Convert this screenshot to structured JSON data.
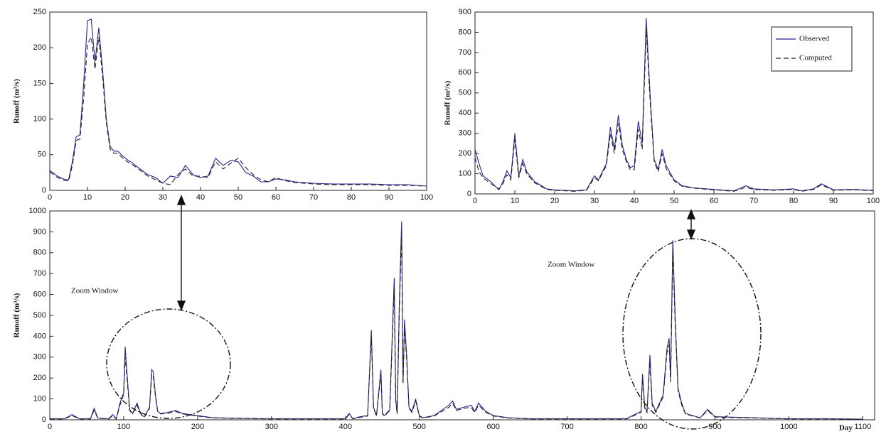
{
  "chart_data": [
    {
      "type": "line",
      "ylabel": "Runoff (m³/s)",
      "x": [
        0,
        2,
        4,
        5,
        6,
        7,
        8,
        9,
        10,
        11,
        12,
        13,
        14,
        15,
        16,
        17,
        18,
        20,
        22,
        24,
        26,
        28,
        30,
        32,
        34,
        36,
        38,
        40,
        42,
        44,
        46,
        48,
        50,
        52,
        54,
        56,
        58,
        60,
        62,
        65,
        70,
        75,
        80,
        85,
        90,
        95,
        100
      ],
      "series": [
        {
          "name": "Observed",
          "color": "#24248f",
          "linestyle": "solid",
          "values": [
            28,
            20,
            15,
            15,
            40,
            75,
            78,
            150,
            238,
            240,
            180,
            228,
            170,
            100,
            62,
            55,
            55,
            45,
            38,
            30,
            22,
            18,
            10,
            20,
            18,
            35,
            22,
            18,
            20,
            45,
            35,
            42,
            40,
            25,
            20,
            12,
            12,
            16,
            15,
            12,
            10,
            9,
            9,
            9,
            8,
            8,
            6
          ]
        },
        {
          "name": "Computed",
          "color": "#222222",
          "linestyle": "dashed",
          "values": [
            26,
            18,
            14,
            13,
            35,
            70,
            72,
            130,
            205,
            215,
            170,
            215,
            160,
            95,
            58,
            52,
            52,
            42,
            36,
            28,
            20,
            15,
            10,
            8,
            22,
            30,
            20,
            20,
            18,
            40,
            30,
            38,
            45,
            32,
            22,
            15,
            12,
            18,
            14,
            11,
            9,
            8,
            8,
            8,
            7,
            7,
            6
          ]
        }
      ],
      "xlim": [
        0,
        100
      ],
      "xticks": [
        0,
        10,
        20,
        30,
        40,
        50,
        60,
        70,
        80,
        90,
        100
      ],
      "ylim": [
        0,
        250
      ],
      "yticks": [
        0,
        50,
        100,
        150,
        200,
        250
      ]
    },
    {
      "type": "line",
      "ylabel": "Runoff (m³/s)",
      "legend": "upper right",
      "x": [
        0,
        1,
        2,
        4,
        6,
        7,
        8,
        9,
        10,
        11,
        12,
        13,
        15,
        18,
        20,
        25,
        28,
        30,
        31,
        33,
        34,
        35,
        36,
        37,
        38,
        39,
        40,
        41,
        42,
        43,
        44,
        45,
        46,
        47,
        48,
        50,
        52,
        55,
        60,
        65,
        68,
        70,
        75,
        80,
        82,
        85,
        87,
        90,
        95,
        100
      ],
      "series": [
        {
          "name": "Observed",
          "color": "#24248f",
          "linestyle": "solid",
          "values": [
            220,
            150,
            90,
            60,
            20,
            60,
            115,
            80,
            300,
            90,
            170,
            110,
            60,
            25,
            20,
            15,
            20,
            90,
            70,
            150,
            330,
            220,
            390,
            240,
            170,
            130,
            140,
            360,
            250,
            870,
            480,
            170,
            120,
            220,
            140,
            70,
            40,
            30,
            22,
            15,
            40,
            25,
            20,
            25,
            15,
            25,
            50,
            20,
            22,
            18
          ]
        },
        {
          "name": "Computed",
          "color": "#222222",
          "linestyle": "dashed",
          "values": [
            180,
            110,
            80,
            50,
            25,
            50,
            95,
            70,
            270,
            80,
            150,
            100,
            55,
            22,
            18,
            13,
            18,
            80,
            65,
            140,
            300,
            200,
            350,
            220,
            160,
            120,
            120,
            320,
            220,
            820,
            450,
            160,
            110,
            200,
            125,
            65,
            38,
            28,
            20,
            13,
            32,
            22,
            18,
            22,
            13,
            22,
            45,
            18,
            20,
            16
          ]
        }
      ],
      "xlim": [
        0,
        100
      ],
      "xticks": [
        0,
        10,
        20,
        30,
        40,
        50,
        60,
        70,
        80,
        90,
        100
      ],
      "ylim": [
        0,
        900
      ],
      "yticks": [
        0,
        100,
        200,
        300,
        400,
        500,
        600,
        700,
        800,
        900
      ]
    },
    {
      "type": "line",
      "ylabel": "Runoff (m³/s)",
      "xlabel": "Day",
      "annotations": [
        "Zoom Window",
        "Zoom Window"
      ],
      "x": [
        0,
        20,
        30,
        40,
        55,
        60,
        65,
        80,
        85,
        90,
        95,
        100,
        102,
        105,
        108,
        112,
        118,
        122,
        125,
        128,
        135,
        138,
        140,
        143,
        146,
        150,
        160,
        170,
        180,
        200,
        220,
        240,
        300,
        350,
        400,
        405,
        410,
        420,
        430,
        435,
        438,
        442,
        448,
        450,
        453,
        460,
        466,
        468,
        470,
        473,
        476,
        478,
        480,
        483,
        486,
        490,
        495,
        500,
        505,
        520,
        540,
        545,
        550,
        560,
        570,
        575,
        580,
        590,
        600,
        620,
        650,
        700,
        750,
        780,
        800,
        802,
        805,
        808,
        812,
        815,
        820,
        830,
        835,
        838,
        840,
        843,
        846,
        850,
        855,
        860,
        870,
        880,
        890,
        900,
        950,
        1000,
        1050,
        1100
      ],
      "series": [
        {
          "name": "Observed",
          "color": "#24248f",
          "linestyle": "solid",
          "values": [
            5,
            5,
            25,
            5,
            5,
            55,
            8,
            5,
            25,
            5,
            80,
            130,
            350,
            200,
            50,
            30,
            80,
            40,
            20,
            15,
            60,
            240,
            230,
            120,
            40,
            30,
            35,
            45,
            30,
            20,
            10,
            8,
            5,
            5,
            5,
            30,
            5,
            15,
            20,
            430,
            60,
            20,
            240,
            30,
            20,
            50,
            680,
            100,
            30,
            560,
            950,
            180,
            480,
            300,
            60,
            40,
            100,
            20,
            10,
            20,
            70,
            90,
            50,
            60,
            70,
            40,
            80,
            40,
            20,
            10,
            5,
            5,
            5,
            5,
            40,
            220,
            60,
            40,
            310,
            80,
            40,
            120,
            340,
            390,
            200,
            860,
            500,
            150,
            80,
            30,
            20,
            10,
            50,
            15,
            10,
            5,
            5,
            3
          ]
        },
        {
          "name": "Computed",
          "color": "#222222",
          "linestyle": "dashed",
          "values": [
            4,
            4,
            20,
            4,
            4,
            45,
            7,
            4,
            20,
            4,
            70,
            120,
            300,
            180,
            45,
            28,
            70,
            35,
            18,
            13,
            55,
            220,
            210,
            110,
            38,
            28,
            32,
            40,
            28,
            18,
            9,
            7,
            4,
            4,
            4,
            25,
            4,
            12,
            18,
            400,
            55,
            18,
            220,
            28,
            18,
            45,
            640,
            90,
            28,
            520,
            900,
            170,
            450,
            280,
            55,
            35,
            90,
            18,
            9,
            18,
            60,
            80,
            45,
            55,
            60,
            35,
            70,
            35,
            18,
            9,
            4,
            4,
            4,
            4,
            35,
            200,
            55,
            35,
            280,
            70,
            35,
            110,
            320,
            360,
            180,
            820,
            470,
            140,
            70,
            28,
            18,
            9,
            45,
            13,
            9,
            4,
            4,
            3
          ]
        }
      ],
      "xlim": [
        0,
        1116
      ],
      "xticks": [
        0,
        100,
        200,
        300,
        400,
        500,
        600,
        700,
        800,
        900,
        1000,
        1100
      ],
      "ylim": [
        0,
        1000
      ],
      "yticks": [
        0,
        100,
        200,
        300,
        400,
        500,
        600,
        700,
        800,
        900,
        1000
      ]
    }
  ]
}
